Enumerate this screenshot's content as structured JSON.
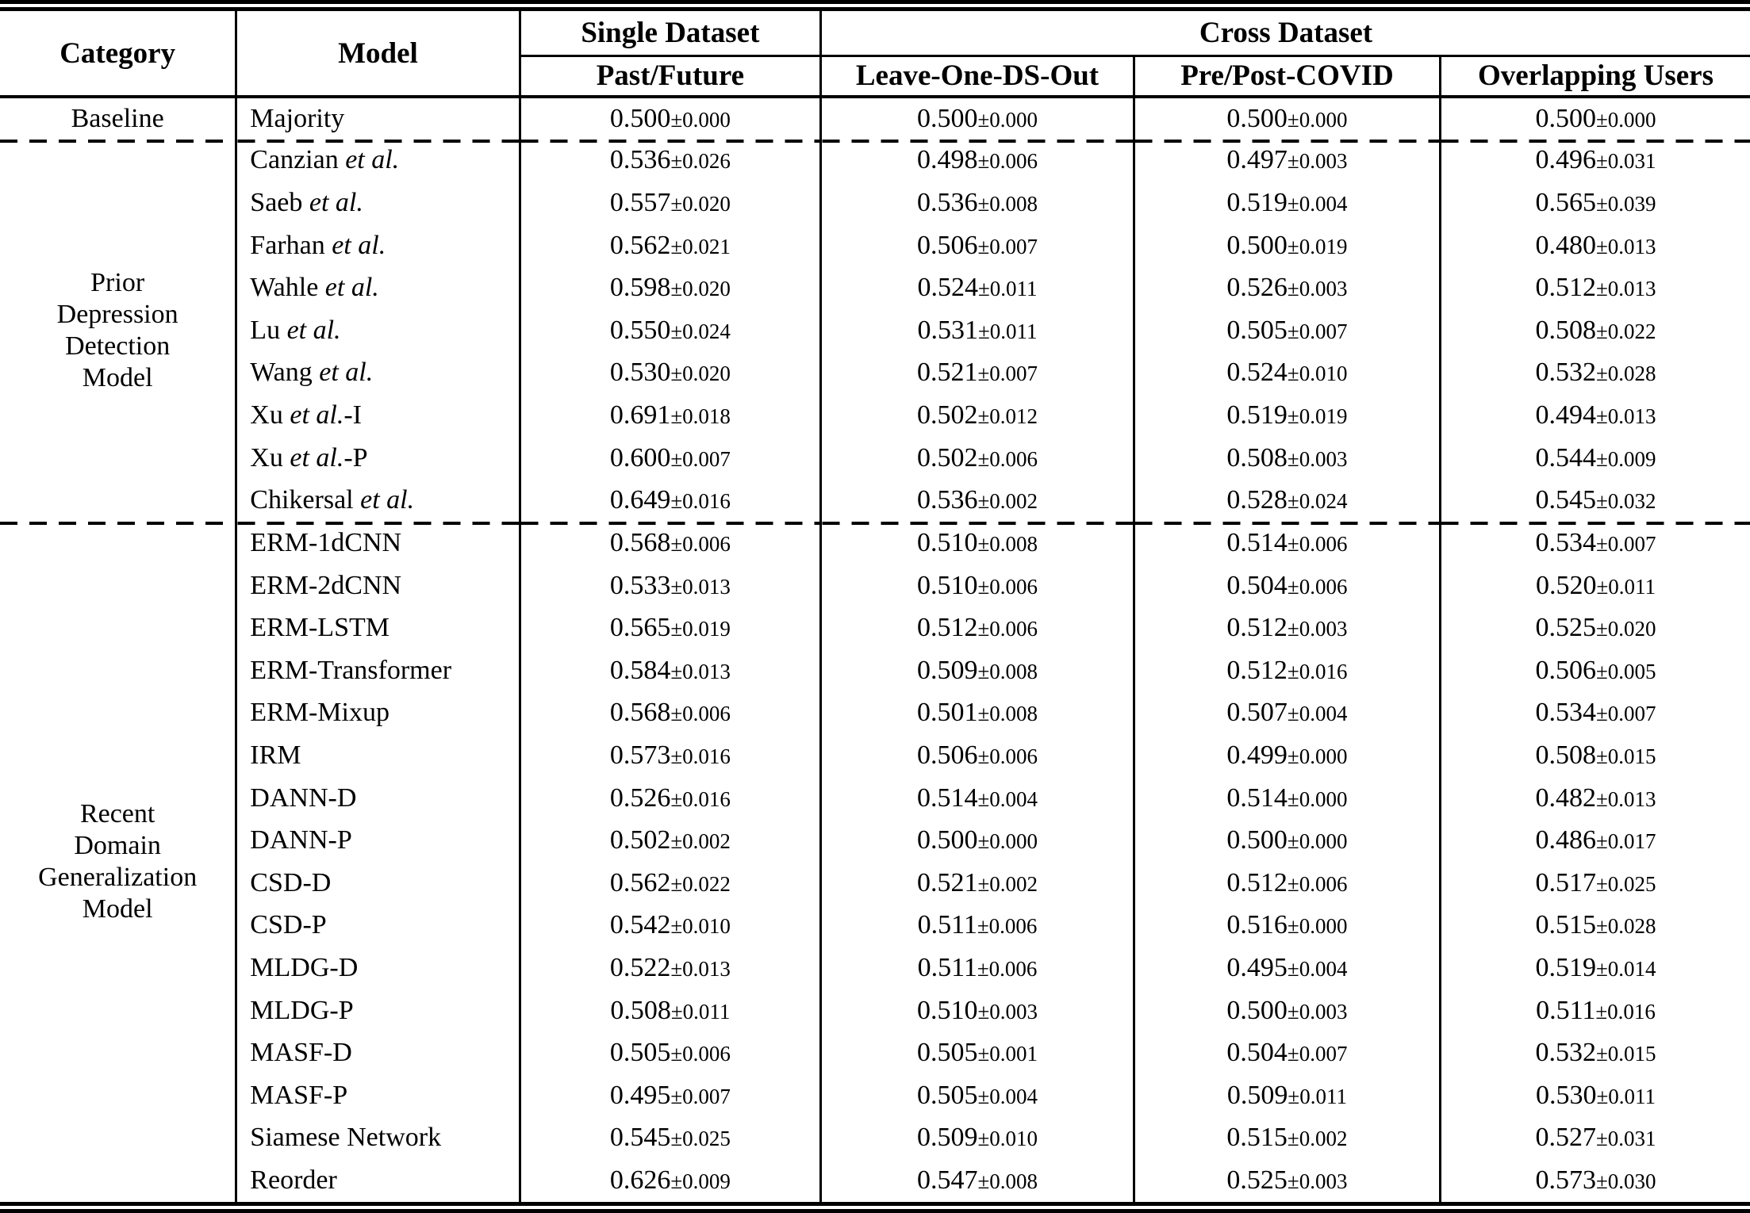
{
  "colors": {
    "text": "#000000",
    "background": "#ffffff",
    "rule": "#000000"
  },
  "table": {
    "header": {
      "category": "Category",
      "model": "Model",
      "single_dataset": "Single Dataset",
      "cross_dataset": "Cross Dataset",
      "subcolumns": [
        "Past/Future",
        "Leave-One-DS-Out",
        "Pre/Post-COVID",
        "Overlapping Users"
      ]
    },
    "groups": [
      {
        "category": "Baseline",
        "category_lines": [
          "Baseline"
        ],
        "rows": [
          {
            "model": [
              "Majority",
              "",
              ""
            ],
            "values": [
              "0.500±0.000",
              "0.500±0.000",
              "0.500±0.000",
              "0.500±0.000"
            ]
          }
        ]
      },
      {
        "category": "Prior Depression Detection Model",
        "category_lines": [
          "Prior",
          "Depression",
          "Detection",
          "Model"
        ],
        "rows": [
          {
            "model": [
              "Canzian ",
              "et al.",
              ""
            ],
            "values": [
              "0.536±0.026",
              "0.498±0.006",
              "0.497±0.003",
              "0.496±0.031"
            ]
          },
          {
            "model": [
              "Saeb ",
              "et al.",
              ""
            ],
            "values": [
              "0.557±0.020",
              "0.536±0.008",
              "0.519±0.004",
              "0.565±0.039"
            ]
          },
          {
            "model": [
              "Farhan ",
              "et al.",
              ""
            ],
            "values": [
              "0.562±0.021",
              "0.506±0.007",
              "0.500±0.019",
              "0.480±0.013"
            ]
          },
          {
            "model": [
              "Wahle ",
              "et al.",
              ""
            ],
            "values": [
              "0.598±0.020",
              "0.524±0.011",
              "0.526±0.003",
              "0.512±0.013"
            ]
          },
          {
            "model": [
              "Lu ",
              "et al.",
              ""
            ],
            "values": [
              "0.550±0.024",
              "0.531±0.011",
              "0.505±0.007",
              "0.508±0.022"
            ]
          },
          {
            "model": [
              "Wang ",
              "et al.",
              ""
            ],
            "values": [
              "0.530±0.020",
              "0.521±0.007",
              "0.524±0.010",
              "0.532±0.028"
            ]
          },
          {
            "model": [
              "Xu ",
              "et al.",
              "-I"
            ],
            "values": [
              "0.691±0.018",
              "0.502±0.012",
              "0.519±0.019",
              "0.494±0.013"
            ]
          },
          {
            "model": [
              "Xu ",
              "et al.",
              "-P"
            ],
            "values": [
              "0.600±0.007",
              "0.502±0.006",
              "0.508±0.003",
              "0.544±0.009"
            ]
          },
          {
            "model": [
              "Chikersal ",
              "et al.",
              ""
            ],
            "values": [
              "0.649±0.016",
              "0.536±0.002",
              "0.528±0.024",
              "0.545±0.032"
            ]
          }
        ]
      },
      {
        "category": "Recent Domain Generalization Model",
        "category_lines": [
          "Recent",
          "Domain",
          "Generalization",
          "Model"
        ],
        "rows": [
          {
            "model": [
              "ERM-1dCNN",
              "",
              ""
            ],
            "values": [
              "0.568±0.006",
              "0.510±0.008",
              "0.514±0.006",
              "0.534±0.007"
            ]
          },
          {
            "model": [
              "ERM-2dCNN",
              "",
              ""
            ],
            "values": [
              "0.533±0.013",
              "0.510±0.006",
              "0.504±0.006",
              "0.520±0.011"
            ]
          },
          {
            "model": [
              "ERM-LSTM",
              "",
              ""
            ],
            "values": [
              "0.565±0.019",
              "0.512±0.006",
              "0.512±0.003",
              "0.525±0.020"
            ]
          },
          {
            "model": [
              "ERM-Transformer",
              "",
              ""
            ],
            "values": [
              "0.584±0.013",
              "0.509±0.008",
              "0.512±0.016",
              "0.506±0.005"
            ]
          },
          {
            "model": [
              "ERM-Mixup",
              "",
              ""
            ],
            "values": [
              "0.568±0.006",
              "0.501±0.008",
              "0.507±0.004",
              "0.534±0.007"
            ]
          },
          {
            "model": [
              "IRM",
              "",
              ""
            ],
            "values": [
              "0.573±0.016",
              "0.506±0.006",
              "0.499±0.000",
              "0.508±0.015"
            ]
          },
          {
            "model": [
              "DANN-D",
              "",
              ""
            ],
            "values": [
              "0.526±0.016",
              "0.514±0.004",
              "0.514±0.000",
              "0.482±0.013"
            ]
          },
          {
            "model": [
              "DANN-P",
              "",
              ""
            ],
            "values": [
              "0.502±0.002",
              "0.500±0.000",
              "0.500±0.000",
              "0.486±0.017"
            ]
          },
          {
            "model": [
              "CSD-D",
              "",
              ""
            ],
            "values": [
              "0.562±0.022",
              "0.521±0.002",
              "0.512±0.006",
              "0.517±0.025"
            ]
          },
          {
            "model": [
              "CSD-P",
              "",
              ""
            ],
            "values": [
              "0.542±0.010",
              "0.511±0.006",
              "0.516±0.000",
              "0.515±0.028"
            ]
          },
          {
            "model": [
              "MLDG-D",
              "",
              ""
            ],
            "values": [
              "0.522±0.013",
              "0.511±0.006",
              "0.495±0.004",
              "0.519±0.014"
            ]
          },
          {
            "model": [
              "MLDG-P",
              "",
              ""
            ],
            "values": [
              "0.508±0.011",
              "0.510±0.003",
              "0.500±0.003",
              "0.511±0.016"
            ]
          },
          {
            "model": [
              "MASF-D",
              "",
              ""
            ],
            "values": [
              "0.505±0.006",
              "0.505±0.001",
              "0.504±0.007",
              "0.532±0.015"
            ]
          },
          {
            "model": [
              "MASF-P",
              "",
              ""
            ],
            "values": [
              "0.495±0.007",
              "0.505±0.004",
              "0.509±0.011",
              "0.530±0.011"
            ]
          },
          {
            "model": [
              "Siamese Network",
              "",
              ""
            ],
            "values": [
              "0.545±0.025",
              "0.509±0.010",
              "0.515±0.002",
              "0.527±0.031"
            ]
          },
          {
            "model": [
              "Reorder",
              "",
              ""
            ],
            "values": [
              "0.626±0.009",
              "0.547±0.008",
              "0.525±0.003",
              "0.573±0.030"
            ]
          }
        ]
      }
    ]
  }
}
